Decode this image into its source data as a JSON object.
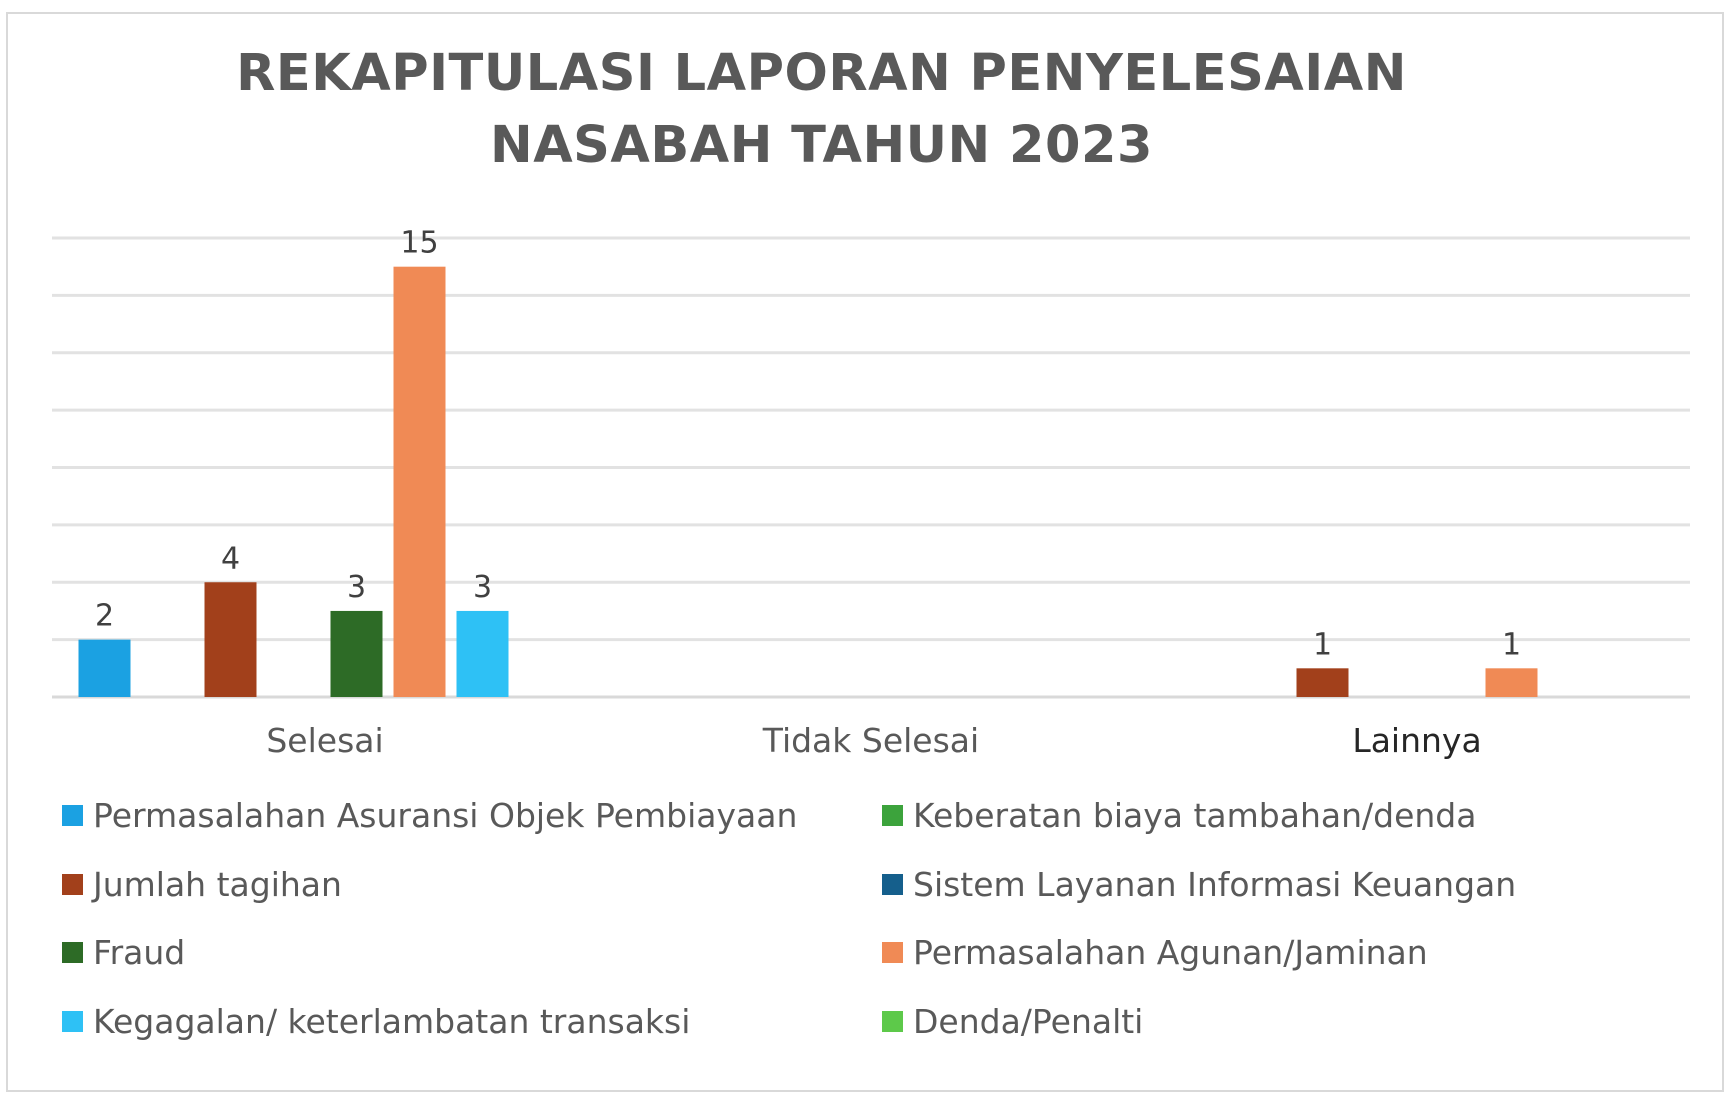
{
  "chart_data": {
    "type": "bar",
    "title": "REKAPITULASI LAPORAN PENYELESAIAN\nNASABAH TAHUN 2023",
    "categories": [
      "Selesai",
      "Tidak Selesai",
      "Lainnya"
    ],
    "ylim": [
      0,
      16
    ],
    "grid": true,
    "legend_position": "bottom",
    "series": [
      {
        "name": "Permasalahan Asuransi Objek Pembiayaan",
        "color": "#1ba1e2",
        "values": [
          2,
          null,
          null
        ]
      },
      {
        "name": "Keberatan biaya tambahan/denda",
        "color": "#3ca33c",
        "values": [
          null,
          null,
          null
        ]
      },
      {
        "name": "Jumlah tagihan",
        "color": "#a2401b",
        "values": [
          4,
          null,
          1
        ]
      },
      {
        "name": "Sistem Layanan Informasi Keuangan",
        "color": "#155f8c",
        "values": [
          null,
          null,
          null
        ]
      },
      {
        "name": "Fraud",
        "color": "#2d6b26",
        "values": [
          3,
          null,
          null
        ]
      },
      {
        "name": "Permasalahan Agunan/Jaminan",
        "color": "#f08a55",
        "values": [
          15,
          null,
          1
        ]
      },
      {
        "name": "Kegagalan/ keterlambatan transaksi",
        "color": "#2ec1f5",
        "values": [
          3,
          null,
          null
        ]
      },
      {
        "name": "Denda/Penalti",
        "color": "#5dc94a",
        "values": [
          null,
          null,
          null
        ]
      }
    ]
  }
}
